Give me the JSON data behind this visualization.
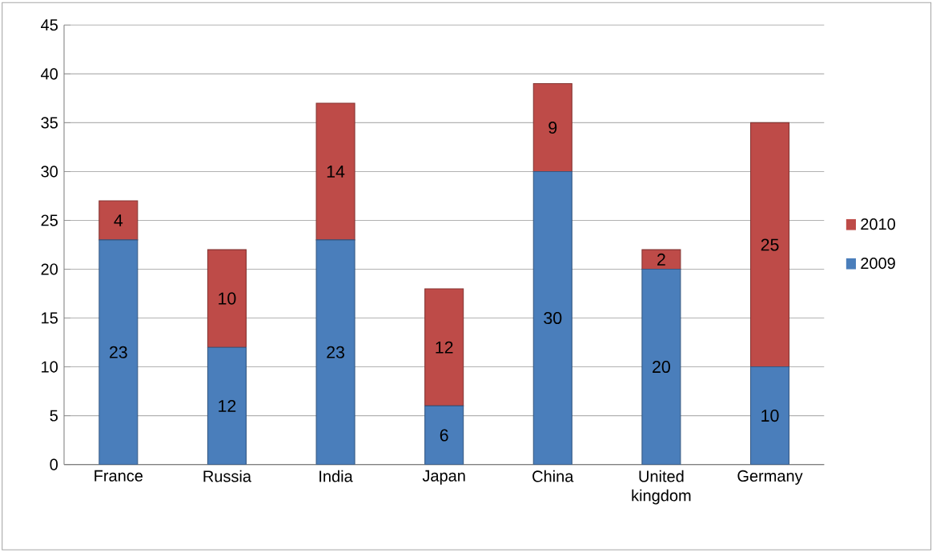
{
  "chart_data": {
    "type": "bar",
    "stacked": true,
    "categories": [
      "France",
      "Russia",
      "India",
      "Japan",
      "China",
      "United kingdom",
      "Germany"
    ],
    "series": [
      {
        "name": "2009",
        "color": "#4a7ebb",
        "values": [
          23,
          12,
          23,
          6,
          30,
          20,
          10
        ]
      },
      {
        "name": "2010",
        "color": "#be4b48",
        "values": [
          4,
          10,
          14,
          12,
          9,
          2,
          25
        ]
      }
    ],
    "ylim": [
      0,
      45
    ],
    "yticks": [
      0,
      5,
      10,
      15,
      20,
      25,
      30,
      35,
      40,
      45
    ],
    "grid": "y",
    "legend": "right",
    "data_labels": true
  }
}
